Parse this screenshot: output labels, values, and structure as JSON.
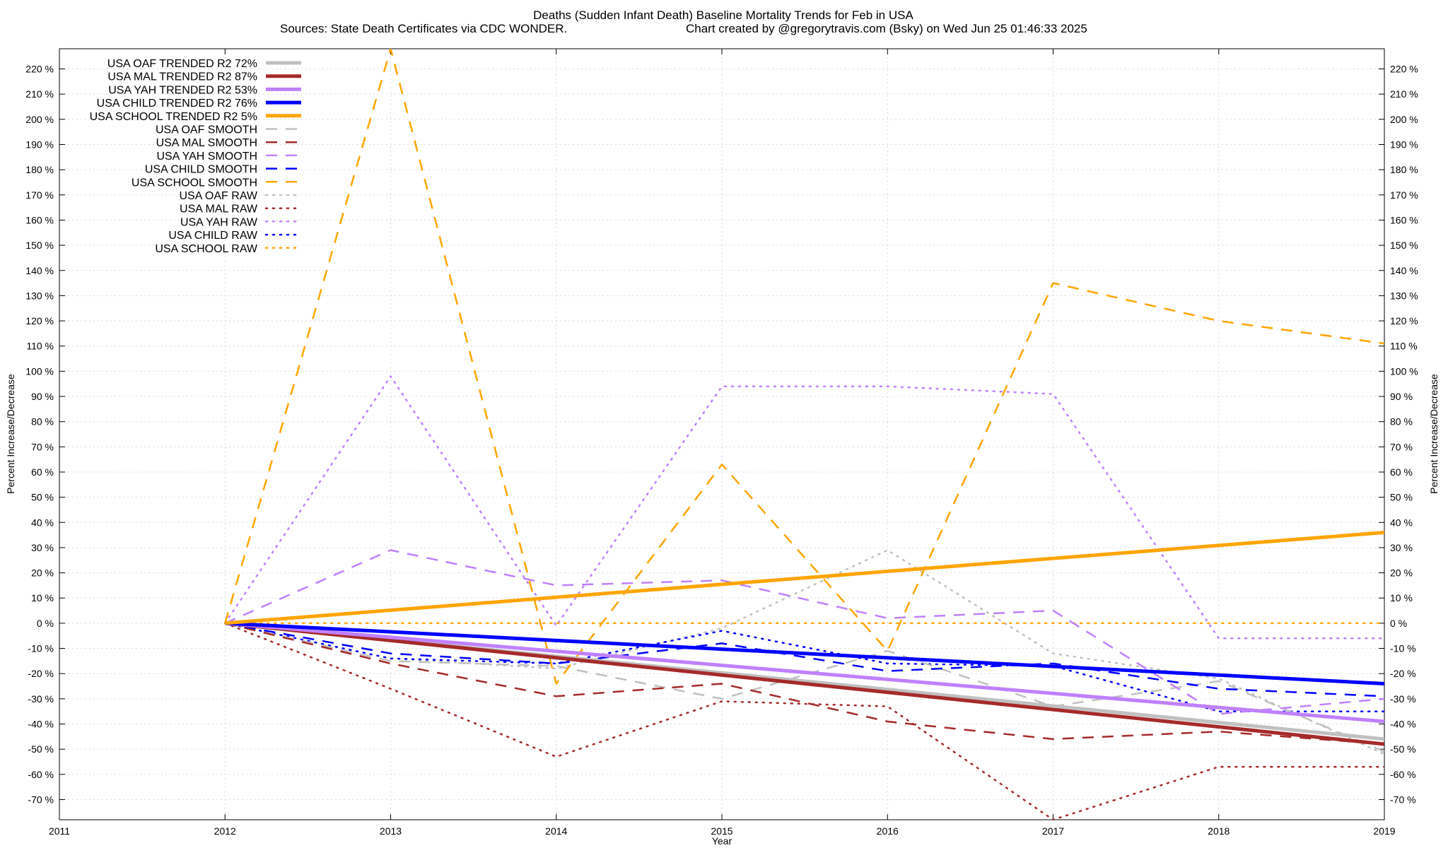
{
  "chart_data": {
    "type": "line",
    "title": "Deaths (Sudden Infant Death)  Baseline Mortality Trends for Feb in USA",
    "subtitle_left": "Sources: State Death Certificates via CDC WONDER.",
    "subtitle_right": "Chart created by @gregorytravis.com (Bsky) on Wed Jun 25 01:46:33 2025",
    "xlabel": "Year",
    "ylabel": "Percent Increase/Decrease",
    "y2label": "Percent Increase/Decrease",
    "xlim": [
      2011,
      2019
    ],
    "ylim": [
      -78,
      228
    ],
    "x_ticks": [
      "2011",
      "2012",
      "2013",
      "2014",
      "2015",
      "2016",
      "2017",
      "2018",
      "2019"
    ],
    "y_ticks": [
      "220 %",
      "210 %",
      "200 %",
      "190 %",
      "180 %",
      "170 %",
      "160 %",
      "150 %",
      "140 %",
      "130 %",
      "120 %",
      "110 %",
      "100 %",
      "90 %",
      "80 %",
      "70 %",
      "60 %",
      "50 %",
      "40 %",
      "30 %",
      "20 %",
      "10 %",
      "0 %",
      "-10 %",
      "-20 %",
      "-30 %",
      "-40 %",
      "-50 %",
      "-60 %",
      "-70 %"
    ],
    "grid": true,
    "legend_position": "top-left",
    "series": [
      {
        "name": "USA OAF TRENDED R2  72%",
        "style": "solid",
        "color": "#c0c0c0",
        "x": [
          2012,
          2019
        ],
        "y": [
          0,
          -46
        ]
      },
      {
        "name": "USA MAL TRENDED R2  87%",
        "style": "solid",
        "color": "#a52a2a",
        "x": [
          2012,
          2019
        ],
        "y": [
          0,
          -48
        ]
      },
      {
        "name": "USA YAH TRENDED R2  53%",
        "style": "solid",
        "color": "#c080ff",
        "x": [
          2012,
          2019
        ],
        "y": [
          0,
          -39
        ]
      },
      {
        "name": "USA CHILD TRENDED R2  76%",
        "style": "solid",
        "color": "#0000ff",
        "x": [
          2012,
          2019
        ],
        "y": [
          0,
          -24
        ]
      },
      {
        "name": "USA SCHOOL TRENDED R2   5%",
        "style": "solid",
        "color": "#ffa500",
        "x": [
          2012,
          2019
        ],
        "y": [
          0,
          36
        ]
      },
      {
        "name": "USA OAF SMOOTH",
        "style": "dash",
        "color": "#c0c0c0",
        "x": [
          2012,
          2013,
          2014,
          2015,
          2016,
          2017,
          2018,
          2019
        ],
        "y": [
          0,
          -15,
          -17,
          -30,
          -11,
          -33,
          -23,
          -51
        ]
      },
      {
        "name": "USA MAL SMOOTH",
        "style": "dash",
        "color": "#a52a2a",
        "x": [
          2012,
          2013,
          2014,
          2015,
          2016,
          2017,
          2018,
          2019
        ],
        "y": [
          0,
          -16,
          -29,
          -24,
          -39,
          -46,
          -43,
          -48
        ]
      },
      {
        "name": "USA YAH SMOOTH",
        "style": "dash",
        "color": "#c080ff",
        "x": [
          2012,
          2013,
          2014,
          2015,
          2016,
          2017,
          2018,
          2019
        ],
        "y": [
          0,
          29,
          15,
          17,
          2,
          5,
          -36,
          -30
        ]
      },
      {
        "name": "USA CHILD SMOOTH",
        "style": "dash",
        "color": "#0000ff",
        "x": [
          2012,
          2013,
          2014,
          2015,
          2016,
          2017,
          2018,
          2019
        ],
        "y": [
          0,
          -12,
          -16,
          -8,
          -19,
          -16,
          -26,
          -29
        ]
      },
      {
        "name": "USA SCHOOL SMOOTH",
        "style": "dash",
        "color": "#ffa500",
        "x": [
          2012,
          2013,
          2014,
          2015,
          2016,
          2017,
          2018,
          2019
        ],
        "y": [
          0,
          228,
          -24,
          63,
          -11,
          135,
          120,
          111
        ]
      },
      {
        "name": "USA OAF RAW",
        "style": "dot",
        "color": "#c0c0c0",
        "x": [
          2012,
          2013,
          2014,
          2015,
          2016,
          2017,
          2018,
          2019
        ],
        "y": [
          0,
          -14,
          -18,
          -2,
          29,
          -12,
          -22,
          -52
        ]
      },
      {
        "name": "USA MAL RAW",
        "style": "dot",
        "color": "#a52a2a",
        "x": [
          2012,
          2013,
          2014,
          2015,
          2016,
          2017,
          2018,
          2019
        ],
        "y": [
          0,
          -26,
          -53,
          -31,
          -33,
          -78,
          -57,
          -57
        ]
      },
      {
        "name": "USA YAH RAW",
        "style": "dot",
        "color": "#c080ff",
        "x": [
          2012,
          2013,
          2014,
          2015,
          2016,
          2017,
          2018,
          2019
        ],
        "y": [
          0,
          98,
          -1,
          94,
          94,
          91,
          -6,
          -6
        ]
      },
      {
        "name": "USA CHILD RAW",
        "style": "dot",
        "color": "#0000ff",
        "x": [
          2012,
          2013,
          2014,
          2015,
          2016,
          2017,
          2018,
          2019
        ],
        "y": [
          0,
          -14,
          -16,
          -3,
          -16,
          -17,
          -35,
          -35
        ]
      },
      {
        "name": "USA SCHOOL RAW",
        "style": "dot",
        "color": "#ffa500",
        "x": [
          2012,
          2013,
          2014,
          2015,
          2016,
          2017,
          2018,
          2019
        ],
        "y": [
          0,
          0,
          0,
          0,
          0,
          0,
          0,
          0
        ]
      }
    ]
  }
}
